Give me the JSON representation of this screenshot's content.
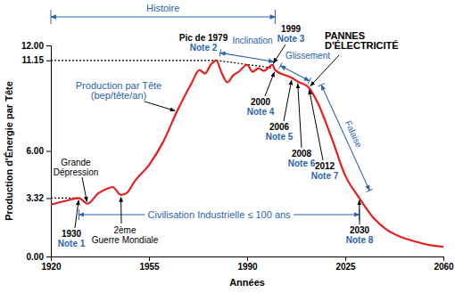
{
  "chart_data": {
    "type": "line",
    "xlabel": "Années",
    "ylabel": "Production d'Énergie par Tête",
    "x": [
      1920,
      1925,
      1930,
      1933,
      1937,
      1940,
      1942,
      1945,
      1947,
      1950,
      1955,
      1960,
      1965,
      1970,
      1973,
      1975,
      1977,
      1979,
      1981,
      1983,
      1985,
      1987,
      1990,
      1992,
      1994,
      1996,
      1998,
      1999,
      2000,
      2006,
      2008,
      2012,
      2015,
      2020,
      2025,
      2030,
      2035,
      2040,
      2045,
      2050,
      2055,
      2060
    ],
    "series": [
      {
        "color": "#e41f1f",
        "values": [
          2.95,
          3.15,
          3.32,
          3.0,
          3.6,
          3.85,
          3.95,
          3.5,
          3.6,
          4.3,
          5.2,
          6.5,
          8.25,
          9.8,
          10.6,
          10.4,
          10.9,
          11.15,
          10.4,
          9.9,
          10.3,
          10.5,
          10.9,
          10.5,
          10.7,
          10.55,
          10.8,
          10.9,
          10.6,
          10.15,
          9.95,
          9.6,
          8.8,
          6.8,
          4.6,
          3.32,
          2.2,
          1.5,
          1.1,
          0.85,
          0.65,
          0.55
        ]
      }
    ],
    "xlim": [
      1920,
      2060
    ],
    "xticks": [
      1920,
      1955,
      1990,
      2025,
      2060
    ],
    "ylim": [
      0,
      12
    ],
    "yticks": [
      {
        "value": 0,
        "label": "0.00"
      },
      {
        "value": 3.32,
        "label": "3.32"
      },
      {
        "value": 6,
        "label": "6.00"
      },
      {
        "value": 11.15,
        "label": "11.15"
      },
      {
        "value": 12,
        "label": "12.00"
      }
    ],
    "grid": false,
    "reference_lines": [
      {
        "y": 3.32,
        "x": [
          1920,
          1930
        ]
      },
      {
        "y": 11.15,
        "x": [
          1920,
          1979
        ]
      }
    ],
    "trend_line": {
      "x": [
        1979,
        2000
      ],
      "y": [
        11.15,
        10.7
      ]
    },
    "periods": [
      {
        "text": "Histoire",
        "x": [
          1920,
          2000
        ]
      },
      {
        "text": "Civilisation Industrielle ≤ 100 ans",
        "x": [
          1930,
          2030
        ]
      }
    ],
    "phases": [
      {
        "text": "Inclination",
        "x": [
          1979,
          2000
        ]
      },
      {
        "text": "Glissement",
        "x": [
          2000,
          2012
        ]
      },
      {
        "text": "Falaise",
        "x": [
          2012,
          2030
        ]
      }
    ],
    "annotations": [
      {
        "lines": [
          "Grande",
          "Dépression"
        ],
        "x": 1933
      },
      {
        "lines": [
          "2ème",
          "Guerre Mondiale"
        ],
        "x": 1945
      },
      {
        "lines": [
          "1930"
        ],
        "note": "Note 1",
        "x": 1930
      },
      {
        "lines": [
          "Production par Tête",
          "(bep/tête/an)"
        ],
        "x": 1965
      },
      {
        "lines": [
          "Pic de 1979"
        ],
        "note": "Note 2",
        "x": 1979
      },
      {
        "lines": [
          "1999"
        ],
        "note": "Note 3",
        "x": 1999
      },
      {
        "lines": [
          "2000"
        ],
        "note": "Note 4",
        "x": 2000
      },
      {
        "lines": [
          "2006"
        ],
        "note": "Note 5",
        "x": 2006
      },
      {
        "lines": [
          "2008"
        ],
        "note": "Note 6",
        "x": 2008
      },
      {
        "lines": [
          "2012"
        ],
        "note": "Note 7",
        "x": 2012
      },
      {
        "lines": [
          "PANNES",
          "D'ÉLECTRICITÉ"
        ],
        "x": 2012
      },
      {
        "lines": [
          "2030"
        ],
        "note": "Note 8",
        "x": 2030
      }
    ]
  }
}
